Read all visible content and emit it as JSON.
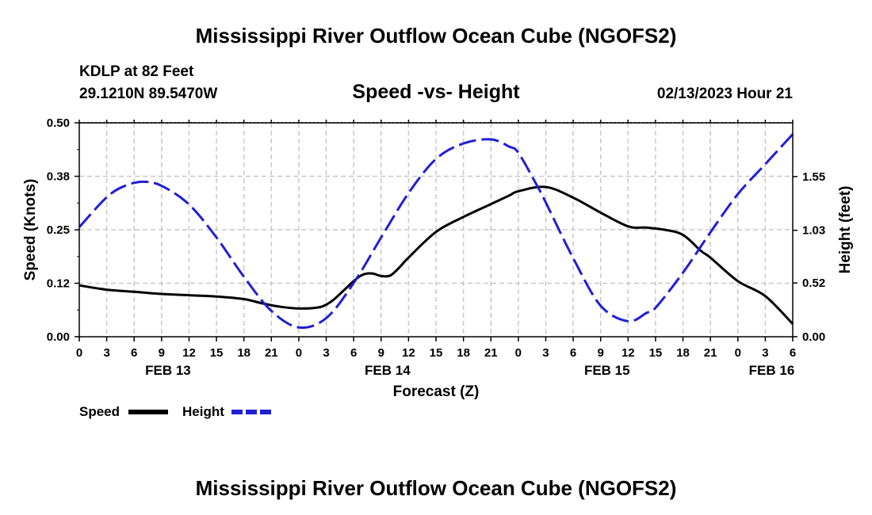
{
  "chart_data": {
    "type": "line",
    "title": "Mississippi River Outflow Ocean Cube (NGOFS2)",
    "footer_title": "Mississippi River Outflow Ocean Cube (NGOFS2)",
    "station": "KDLP at 82 Feet",
    "location": "29.1210N  89.5470W",
    "subtitle": "Speed -vs- Height",
    "issued": "02/13/2023 Hour 21",
    "xlabel": "Forecast (Z)",
    "ylabel_left": "Speed (Knots)",
    "ylabel_right": "Height (feet)",
    "x_range": [
      0,
      78
    ],
    "x_ticks": [
      0,
      3,
      6,
      9,
      12,
      15,
      18,
      21,
      24,
      27,
      30,
      33,
      36,
      39,
      42,
      45,
      48,
      51,
      54,
      57,
      60,
      63,
      66,
      69,
      72,
      75,
      78
    ],
    "x_tick_labels": [
      "0",
      "3",
      "6",
      "9",
      "12",
      "15",
      "18",
      "21",
      "0",
      "3",
      "6",
      "9",
      "12",
      "15",
      "18",
      "21",
      "0",
      "3",
      "6",
      "9",
      "12",
      "15",
      "18",
      "21",
      "0",
      "3",
      "6"
    ],
    "day_labels": [
      {
        "hour": 9.7,
        "label": "FEB 13"
      },
      {
        "hour": 33.7,
        "label": "FEB 14"
      },
      {
        "hour": 57.7,
        "label": "FEB 15"
      },
      {
        "hour": 75.7,
        "label": "FEB 16"
      }
    ],
    "y_left": {
      "range": [
        0,
        0.5
      ],
      "ticks": [
        0,
        0.125,
        0.25,
        0.375,
        0.5
      ],
      "tick_labels": [
        "0.00",
        "0.12",
        "0.25",
        "0.38",
        "0.50"
      ]
    },
    "y_right": {
      "range": [
        0,
        2.07
      ],
      "ticks": [
        0,
        0.52,
        1.03,
        1.55
      ],
      "tick_labels": [
        "0.00",
        "0.52",
        "1.03",
        "1.55"
      ]
    },
    "grid": true,
    "series": [
      {
        "name": "Speed",
        "axis": "left",
        "color": "#000000",
        "dash": "solid",
        "x": [
          0,
          3,
          6,
          9,
          12,
          15,
          18,
          20,
          22,
          24,
          26,
          27,
          28,
          30,
          31,
          32,
          33,
          34,
          35,
          36,
          39,
          42,
          45,
          47,
          48,
          51,
          54,
          57,
          60,
          62,
          64,
          66,
          68,
          69,
          72,
          75,
          78
        ],
        "y": [
          0.12,
          0.11,
          0.105,
          0.1,
          0.097,
          0.094,
          0.088,
          0.078,
          0.07,
          0.066,
          0.068,
          0.075,
          0.09,
          0.13,
          0.145,
          0.148,
          0.142,
          0.143,
          0.162,
          0.185,
          0.245,
          0.28,
          0.31,
          0.33,
          0.34,
          0.35,
          0.325,
          0.29,
          0.258,
          0.255,
          0.25,
          0.238,
          0.2,
          0.185,
          0.13,
          0.095,
          0.03
        ]
      },
      {
        "name": "Height",
        "axis": "right",
        "color": "#1f1fd6",
        "dash": "dashed",
        "x": [
          0,
          3,
          5,
          7,
          9,
          12,
          15,
          18,
          21,
          24,
          27,
          30,
          33,
          36,
          39,
          42,
          45,
          47,
          48,
          50,
          51,
          54,
          57,
          60,
          62,
          63,
          66,
          69,
          72,
          75,
          78
        ],
        "y": [
          1.06,
          1.35,
          1.46,
          1.5,
          1.46,
          1.28,
          0.96,
          0.58,
          0.25,
          0.09,
          0.18,
          0.52,
          0.96,
          1.39,
          1.72,
          1.87,
          1.91,
          1.84,
          1.78,
          1.47,
          1.3,
          0.76,
          0.3,
          0.15,
          0.23,
          0.28,
          0.62,
          1.01,
          1.38,
          1.67,
          1.96
        ]
      }
    ],
    "legend": {
      "placement": "bottom-left",
      "items": [
        "Speed",
        "Height"
      ]
    }
  }
}
